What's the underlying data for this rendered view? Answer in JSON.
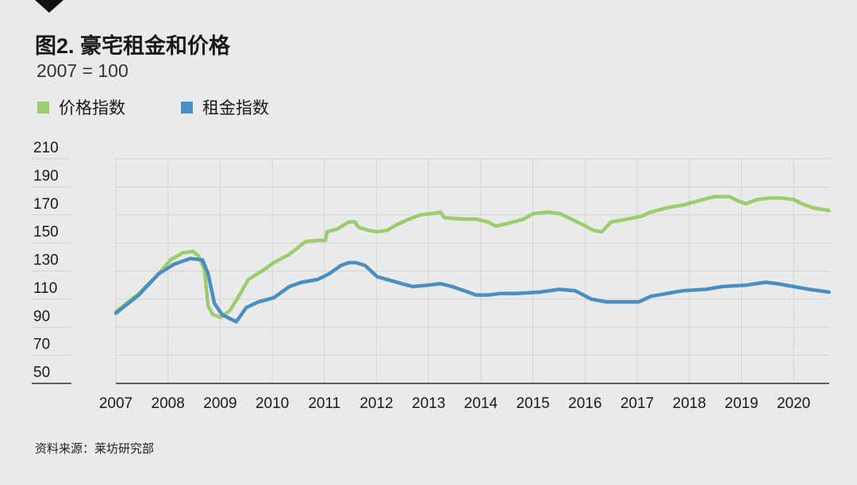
{
  "header": {
    "title": "图2. 豪宅租金和价格",
    "subtitle": "2007 = 100"
  },
  "source": "资料来源：莱坊研究部",
  "chart_data": {
    "type": "line",
    "title": "图2. 豪宅租金和价格",
    "subtitle": "2007 = 100",
    "xlabel": "",
    "ylabel": "",
    "xlim": [
      2007,
      2020.68
    ],
    "ylim": [
      50,
      210
    ],
    "grid": true,
    "legend_position": "top-left",
    "x_ticks": [
      "2007",
      "2008",
      "2009",
      "2010",
      "2011",
      "2012",
      "2013",
      "2014",
      "2015",
      "2016",
      "2017",
      "2018",
      "2019",
      "2020"
    ],
    "y_ticks": [
      "210",
      "190",
      "170",
      "150",
      "130",
      "110",
      "90",
      "70",
      "50"
    ],
    "series": [
      {
        "name": "价格指数",
        "color": "#9dcc6e",
        "points": [
          [
            2007.0,
            101
          ],
          [
            2007.44,
            114
          ],
          [
            2007.82,
            128
          ],
          [
            2008.05,
            138
          ],
          [
            2008.28,
            143
          ],
          [
            2008.48,
            144
          ],
          [
            2008.58,
            141
          ],
          [
            2008.7,
            131
          ],
          [
            2008.77,
            105
          ],
          [
            2008.86,
            99
          ],
          [
            2009.01,
            97
          ],
          [
            2009.19,
            102
          ],
          [
            2009.34,
            111
          ],
          [
            2009.54,
            124
          ],
          [
            2009.8,
            130
          ],
          [
            2010.03,
            136
          ],
          [
            2010.33,
            142
          ],
          [
            2010.64,
            151
          ],
          [
            2010.87,
            152
          ],
          [
            2011.02,
            152
          ],
          [
            2011.05,
            158
          ],
          [
            2011.25,
            160
          ],
          [
            2011.47,
            165
          ],
          [
            2011.58,
            165
          ],
          [
            2011.66,
            161
          ],
          [
            2011.86,
            159
          ],
          [
            2012.01,
            158
          ],
          [
            2012.2,
            159
          ],
          [
            2012.39,
            163
          ],
          [
            2012.62,
            167
          ],
          [
            2012.84,
            170
          ],
          [
            2013.07,
            171
          ],
          [
            2013.23,
            172
          ],
          [
            2013.3,
            168
          ],
          [
            2013.68,
            167
          ],
          [
            2013.91,
            167
          ],
          [
            2014.14,
            165
          ],
          [
            2014.29,
            162
          ],
          [
            2014.52,
            164
          ],
          [
            2014.82,
            167
          ],
          [
            2015.01,
            171
          ],
          [
            2015.28,
            172
          ],
          [
            2015.51,
            171
          ],
          [
            2015.74,
            167
          ],
          [
            2015.96,
            163
          ],
          [
            2016.16,
            159
          ],
          [
            2016.32,
            158
          ],
          [
            2016.5,
            165
          ],
          [
            2016.8,
            167
          ],
          [
            2017.08,
            169
          ],
          [
            2017.26,
            172
          ],
          [
            2017.56,
            175
          ],
          [
            2017.87,
            177
          ],
          [
            2018.17,
            180
          ],
          [
            2018.48,
            183
          ],
          [
            2018.78,
            183
          ],
          [
            2018.93,
            180
          ],
          [
            2019.09,
            178
          ],
          [
            2019.31,
            181
          ],
          [
            2019.54,
            182
          ],
          [
            2019.77,
            182
          ],
          [
            2020.0,
            181
          ],
          [
            2020.15,
            178
          ],
          [
            2020.38,
            175
          ],
          [
            2020.68,
            173
          ]
        ]
      },
      {
        "name": "租金指数",
        "color": "#4a8ec2",
        "points": [
          [
            2007.0,
            100
          ],
          [
            2007.44,
            113
          ],
          [
            2007.82,
            128
          ],
          [
            2008.12,
            135
          ],
          [
            2008.43,
            139
          ],
          [
            2008.66,
            138
          ],
          [
            2008.77,
            128
          ],
          [
            2008.89,
            107
          ],
          [
            2009.04,
            99
          ],
          [
            2009.19,
            96
          ],
          [
            2009.31,
            94
          ],
          [
            2009.5,
            104
          ],
          [
            2009.73,
            108
          ],
          [
            2010.03,
            111
          ],
          [
            2010.33,
            119
          ],
          [
            2010.56,
            122
          ],
          [
            2010.87,
            124
          ],
          [
            2011.09,
            128
          ],
          [
            2011.32,
            134
          ],
          [
            2011.47,
            136
          ],
          [
            2011.6,
            136
          ],
          [
            2011.78,
            134
          ],
          [
            2012.01,
            126
          ],
          [
            2012.2,
            124
          ],
          [
            2012.39,
            122
          ],
          [
            2012.69,
            119
          ],
          [
            2012.99,
            120
          ],
          [
            2013.23,
            121
          ],
          [
            2013.45,
            119
          ],
          [
            2013.68,
            116
          ],
          [
            2013.91,
            113
          ],
          [
            2014.14,
            113
          ],
          [
            2014.37,
            114
          ],
          [
            2014.67,
            114
          ],
          [
            2015.13,
            115
          ],
          [
            2015.51,
            117
          ],
          [
            2015.81,
            116
          ],
          [
            2016.12,
            110
          ],
          [
            2016.42,
            108
          ],
          [
            2016.73,
            108
          ],
          [
            2017.03,
            108
          ],
          [
            2017.26,
            112
          ],
          [
            2017.56,
            114
          ],
          [
            2017.87,
            116
          ],
          [
            2018.32,
            117
          ],
          [
            2018.63,
            119
          ],
          [
            2019.09,
            120
          ],
          [
            2019.46,
            122
          ],
          [
            2019.69,
            121
          ],
          [
            2020.0,
            119
          ],
          [
            2020.3,
            117
          ],
          [
            2020.68,
            115
          ]
        ]
      }
    ]
  }
}
